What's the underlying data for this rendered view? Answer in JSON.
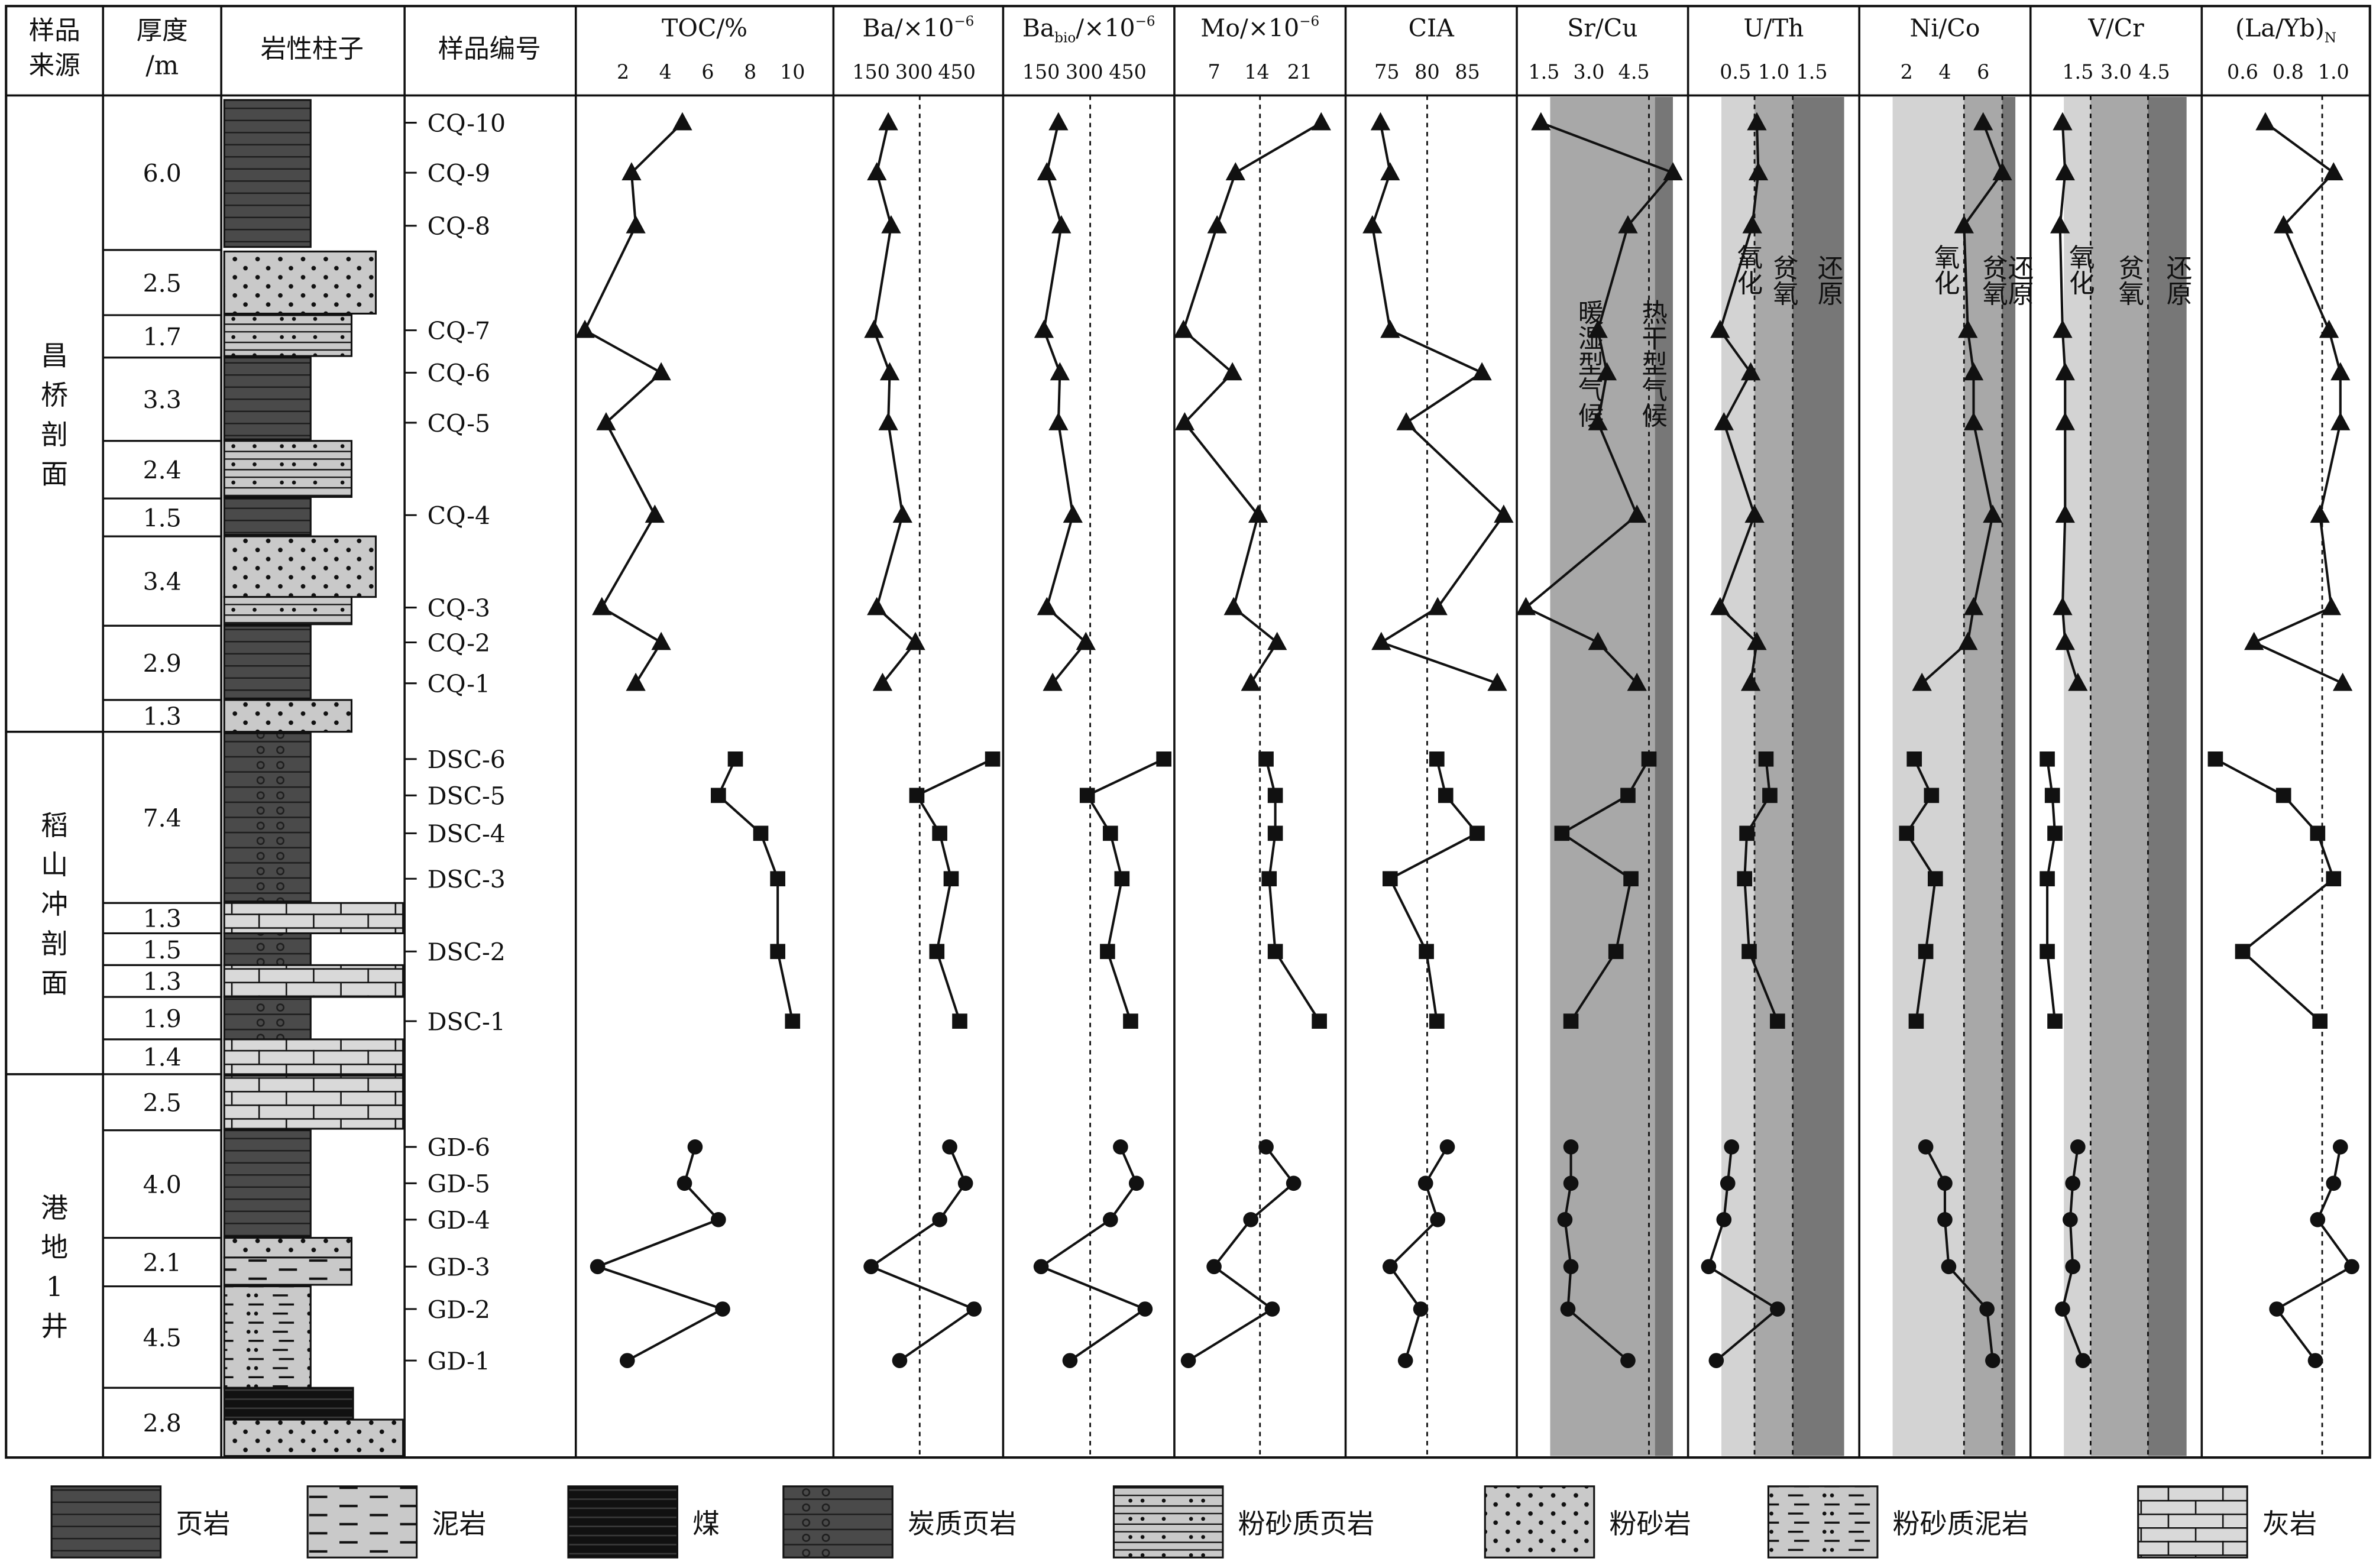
{
  "headers": {
    "source": [
      "样品",
      "来源"
    ],
    "thickness": [
      "厚度",
      "/m"
    ],
    "lithology": "岩性柱子",
    "sample_id": "样品编号"
  },
  "colors": {
    "shale": "#4a4a4a",
    "light_band": "#d3d3d3",
    "mid_band": "#a8a8a8",
    "dark_band": "#777777",
    "coal": "#111111",
    "light_rock": "#c9c9c9"
  },
  "sections": [
    {
      "name": "昌桥剖面",
      "marker": "triangle"
    },
    {
      "name": "稻山冲剖面",
      "marker": "square"
    },
    {
      "name": "港地1井",
      "marker": "circle"
    }
  ],
  "thickness_labels": [
    "6.0",
    "2.5",
    "1.7",
    "3.3",
    "2.4",
    "1.5",
    "3.4",
    "2.9",
    "1.3",
    "7.4",
    "1.3",
    "1.5",
    "1.3",
    "1.9",
    "1.4",
    "2.5",
    "4.0",
    "2.1",
    "4.5",
    "2.8"
  ],
  "samples": [
    "CQ-10",
    "CQ-9",
    "CQ-8",
    "CQ-7",
    "CQ-6",
    "CQ-5",
    "CQ-4",
    "CQ-3",
    "CQ-2",
    "CQ-1",
    "DSC-6",
    "DSC-5",
    "DSC-4",
    "DSC-3",
    "DSC-2",
    "DSC-1",
    "GD-6",
    "GD-5",
    "GD-4",
    "GD-3",
    "GD-2",
    "GD-1"
  ],
  "legend": [
    {
      "key": "shale",
      "label": "页岩"
    },
    {
      "key": "mudstone",
      "label": "泥岩"
    },
    {
      "key": "coal",
      "label": "煤"
    },
    {
      "key": "carbonaceous_shale",
      "label": "炭质页岩"
    },
    {
      "key": "silty_shale",
      "label": "粉砂质页岩"
    },
    {
      "key": "siltstone",
      "label": "粉砂岩"
    },
    {
      "key": "silty_mudstone",
      "label": "粉砂质泥岩"
    },
    {
      "key": "limestone",
      "label": "灰岩"
    }
  ],
  "chart_data": {
    "type": "line",
    "categories": [
      "CQ-10",
      "CQ-9",
      "CQ-8",
      "CQ-7",
      "CQ-6",
      "CQ-5",
      "CQ-4",
      "CQ-3",
      "CQ-2",
      "CQ-1",
      "DSC-6",
      "DSC-5",
      "DSC-4",
      "DSC-3",
      "DSC-2",
      "DSC-1",
      "GD-6",
      "GD-5",
      "GD-4",
      "GD-3",
      "GD-2",
      "GD-1"
    ],
    "series_groups": [
      {
        "id": "CQ",
        "range": [
          0,
          10
        ],
        "marker": "triangle"
      },
      {
        "id": "DSC",
        "range": [
          10,
          16
        ],
        "marker": "square"
      },
      {
        "id": "GD",
        "range": [
          16,
          22
        ],
        "marker": "circle"
      }
    ],
    "panels": [
      {
        "key": "toc",
        "title": "TOC/%",
        "ticks": [
          "2",
          "4",
          "6",
          "8",
          "10"
        ],
        "tick_values": [
          2,
          4,
          6,
          8,
          10
        ],
        "xlim": [
          0.2,
          11.5
        ],
        "dashed": [],
        "values": [
          4.8,
          2.4,
          2.6,
          0.2,
          3.8,
          1.2,
          3.5,
          1.0,
          3.8,
          2.6,
          7.3,
          6.5,
          8.5,
          9.3,
          9.3,
          10.0,
          5.4,
          4.9,
          6.5,
          0.8,
          6.7,
          2.2
        ]
      },
      {
        "key": "ba",
        "title": "Ba/×10",
        "title_sup": "−6",
        "ticks": [
          "150",
          "300",
          "450"
        ],
        "tick_values": [
          150,
          300,
          450
        ],
        "xlim": [
          50,
          580
        ],
        "dashed": [
          320
        ],
        "values": [
          210,
          170,
          220,
          160,
          215,
          210,
          260,
          170,
          305,
          190,
          575,
          310,
          390,
          430,
          380,
          460,
          425,
          480,
          390,
          150,
          510,
          250
        ]
      },
      {
        "key": "babio",
        "title": "Ba",
        "title_sub": "bio",
        "title_tail": "/×10",
        "title_sup": "−6",
        "ticks": [
          "150",
          "300",
          "450"
        ],
        "tick_values": [
          150,
          300,
          450
        ],
        "xlim": [
          50,
          580
        ],
        "dashed": [
          320
        ],
        "values": [
          210,
          170,
          220,
          160,
          215,
          210,
          260,
          170,
          305,
          190,
          575,
          310,
          390,
          430,
          380,
          460,
          425,
          480,
          390,
          150,
          510,
          250
        ]
      },
      {
        "key": "mo",
        "title": "Mo/×10",
        "title_sup": "−6",
        "ticks": [
          "7",
          "14",
          "21"
        ],
        "tick_values": [
          7,
          14,
          21
        ],
        "xlim": [
          2,
          27
        ],
        "dashed": [
          14.5
        ],
        "values": [
          24.5,
          10.5,
          7.5,
          2.0,
          10.0,
          2.2,
          14.2,
          10.2,
          17.3,
          13.0,
          15.5,
          17.0,
          17.0,
          16.0,
          17.0,
          24.2,
          15.5,
          20.0,
          13.0,
          7.0,
          16.5,
          2.8
        ]
      },
      {
        "key": "cia",
        "title": "CIA",
        "ticks": [
          "75",
          "80",
          "85"
        ],
        "tick_values": [
          75,
          80,
          85
        ],
        "xlim": [
          71,
          90
        ],
        "dashed": [
          80
        ],
        "values": [
          74.2,
          75.4,
          73.2,
          75.4,
          86.8,
          77.4,
          89.5,
          81.3,
          74.3,
          88.7,
          81.2,
          82.3,
          86.2,
          75.4,
          79.9,
          81.2,
          82.5,
          79.8,
          81.3,
          75.4,
          79.2,
          77.3
        ]
      },
      {
        "key": "srcu",
        "title": "Sr/Cu",
        "ticks": [
          "1.5",
          "3.0",
          "4.5"
        ],
        "tick_values": [
          1.5,
          3.0,
          4.5
        ],
        "xlim": [
          0.9,
          6.0
        ],
        "dashed": [
          5.0
        ],
        "bands": [
          {
            "from": 0.9,
            "to": 5.2,
            "tone": "mid"
          },
          {
            "from": 5.2,
            "to": 6.0,
            "tone": "dark"
          }
        ],
        "band_labels": [
          "暖湿型气候",
          "热干型气候"
        ],
        "values": [
          1.4,
          5.8,
          4.3,
          3.3,
          3.6,
          3.3,
          4.6,
          0.9,
          3.3,
          4.6,
          5.0,
          4.3,
          2.1,
          4.4,
          3.9,
          2.4,
          2.4,
          2.4,
          2.2,
          2.4,
          2.3,
          4.3
        ]
      },
      {
        "key": "uth",
        "title": "U/Th",
        "ticks": [
          "0.5",
          "1.0",
          "1.5"
        ],
        "tick_values": [
          0.5,
          1.0,
          1.5
        ],
        "xlim": [
          0,
          2.0
        ],
        "dashed": [
          0.75,
          1.25
        ],
        "bands": [
          {
            "from": 0,
            "to": 0.75,
            "tone": "light"
          },
          {
            "from": 0.75,
            "to": 1.25,
            "tone": "mid"
          },
          {
            "from": 1.25,
            "to": 2.0,
            "tone": "dark"
          }
        ],
        "band_labels": [
          "氧化",
          "贫氧",
          "还原"
        ],
        "values": [
          0.78,
          0.8,
          0.72,
          0.3,
          0.7,
          0.35,
          0.75,
          0.3,
          0.78,
          0.7,
          0.9,
          0.95,
          0.65,
          0.62,
          0.68,
          1.05,
          0.45,
          0.4,
          0.35,
          0.15,
          1.05,
          0.25
        ]
      },
      {
        "key": "nico",
        "title": "Ni/Co",
        "ticks": [
          "2",
          "4",
          "6"
        ],
        "tick_values": [
          2,
          4,
          6
        ],
        "xlim": [
          0,
          8
        ],
        "dashed": [
          5.0,
          7.0
        ],
        "bands": [
          {
            "from": 0,
            "to": 5.0,
            "tone": "light"
          },
          {
            "from": 5.0,
            "to": 7.0,
            "tone": "mid"
          },
          {
            "from": 7.0,
            "to": 8.0,
            "tone": "dark"
          }
        ],
        "band_labels": [
          "氧化",
          "贫氧",
          "还原"
        ],
        "values": [
          6.0,
          7.0,
          5.0,
          5.2,
          5.5,
          5.5,
          6.5,
          5.5,
          5.2,
          2.8,
          2.4,
          3.3,
          2.0,
          3.5,
          3.0,
          2.5,
          3.0,
          4.0,
          4.0,
          4.2,
          6.2,
          6.5
        ]
      },
      {
        "key": "vcr",
        "title": "V/Cr",
        "ticks": [
          "1.5",
          "3.0",
          "4.5"
        ],
        "tick_values": [
          1.5,
          3.0,
          4.5
        ],
        "xlim": [
          0,
          6.0
        ],
        "dashed": [
          2.0,
          4.25
        ],
        "bands": [
          {
            "from": 0,
            "to": 2.0,
            "tone": "light"
          },
          {
            "from": 2.0,
            "to": 4.25,
            "tone": "mid"
          },
          {
            "from": 4.25,
            "to": 6.0,
            "tone": "dark"
          }
        ],
        "band_labels": [
          "氧化",
          "贫氧",
          "还原"
        ],
        "values": [
          0.9,
          1.0,
          0.8,
          0.9,
          1.0,
          1.0,
          1.0,
          0.9,
          1.0,
          1.5,
          0.3,
          0.5,
          0.6,
          0.3,
          0.3,
          0.6,
          1.5,
          1.3,
          1.2,
          1.3,
          0.9,
          1.7
        ]
      },
      {
        "key": "layb",
        "title": "(La/Yb)",
        "title_sub": "N",
        "ticks": [
          "0.6",
          "0.8",
          "1.0"
        ],
        "tick_values": [
          0.6,
          0.8,
          1.0
        ],
        "xlim": [
          0.46,
          1.12
        ],
        "dashed": [
          0.95
        ],
        "values": [
          0.7,
          1.0,
          0.78,
          0.98,
          1.03,
          1.03,
          0.94,
          0.99,
          0.65,
          1.04,
          0.48,
          0.78,
          0.93,
          1.0,
          0.6,
          0.94,
          1.03,
          1.0,
          0.93,
          1.08,
          0.75,
          0.92
        ]
      }
    ]
  }
}
